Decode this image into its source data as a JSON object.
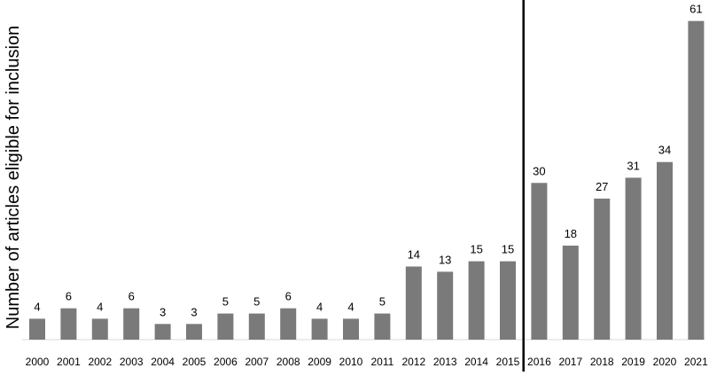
{
  "chart_data": {
    "type": "bar",
    "title": "",
    "xlabel": "",
    "ylabel": "Number of articles eligible for inclusion",
    "categories": [
      "2000",
      "2001",
      "2002",
      "2003",
      "2004",
      "2005",
      "2006",
      "2007",
      "2008",
      "2009",
      "2010",
      "2011",
      "2012",
      "2013",
      "2014",
      "2015",
      "2016",
      "2017",
      "2018",
      "2019",
      "2020",
      "2021"
    ],
    "values": [
      4,
      6,
      4,
      6,
      3,
      3,
      5,
      5,
      6,
      4,
      4,
      5,
      14,
      13,
      15,
      15,
      30,
      18,
      27,
      31,
      34,
      61
    ],
    "ylim": [
      0,
      64
    ],
    "grid": false,
    "legend": "none",
    "divider_after_category": "2015",
    "colors": {
      "bar": "#7a7a7a",
      "axis": "#d9d9d9",
      "divider": "#000000",
      "text": "#000000"
    }
  }
}
